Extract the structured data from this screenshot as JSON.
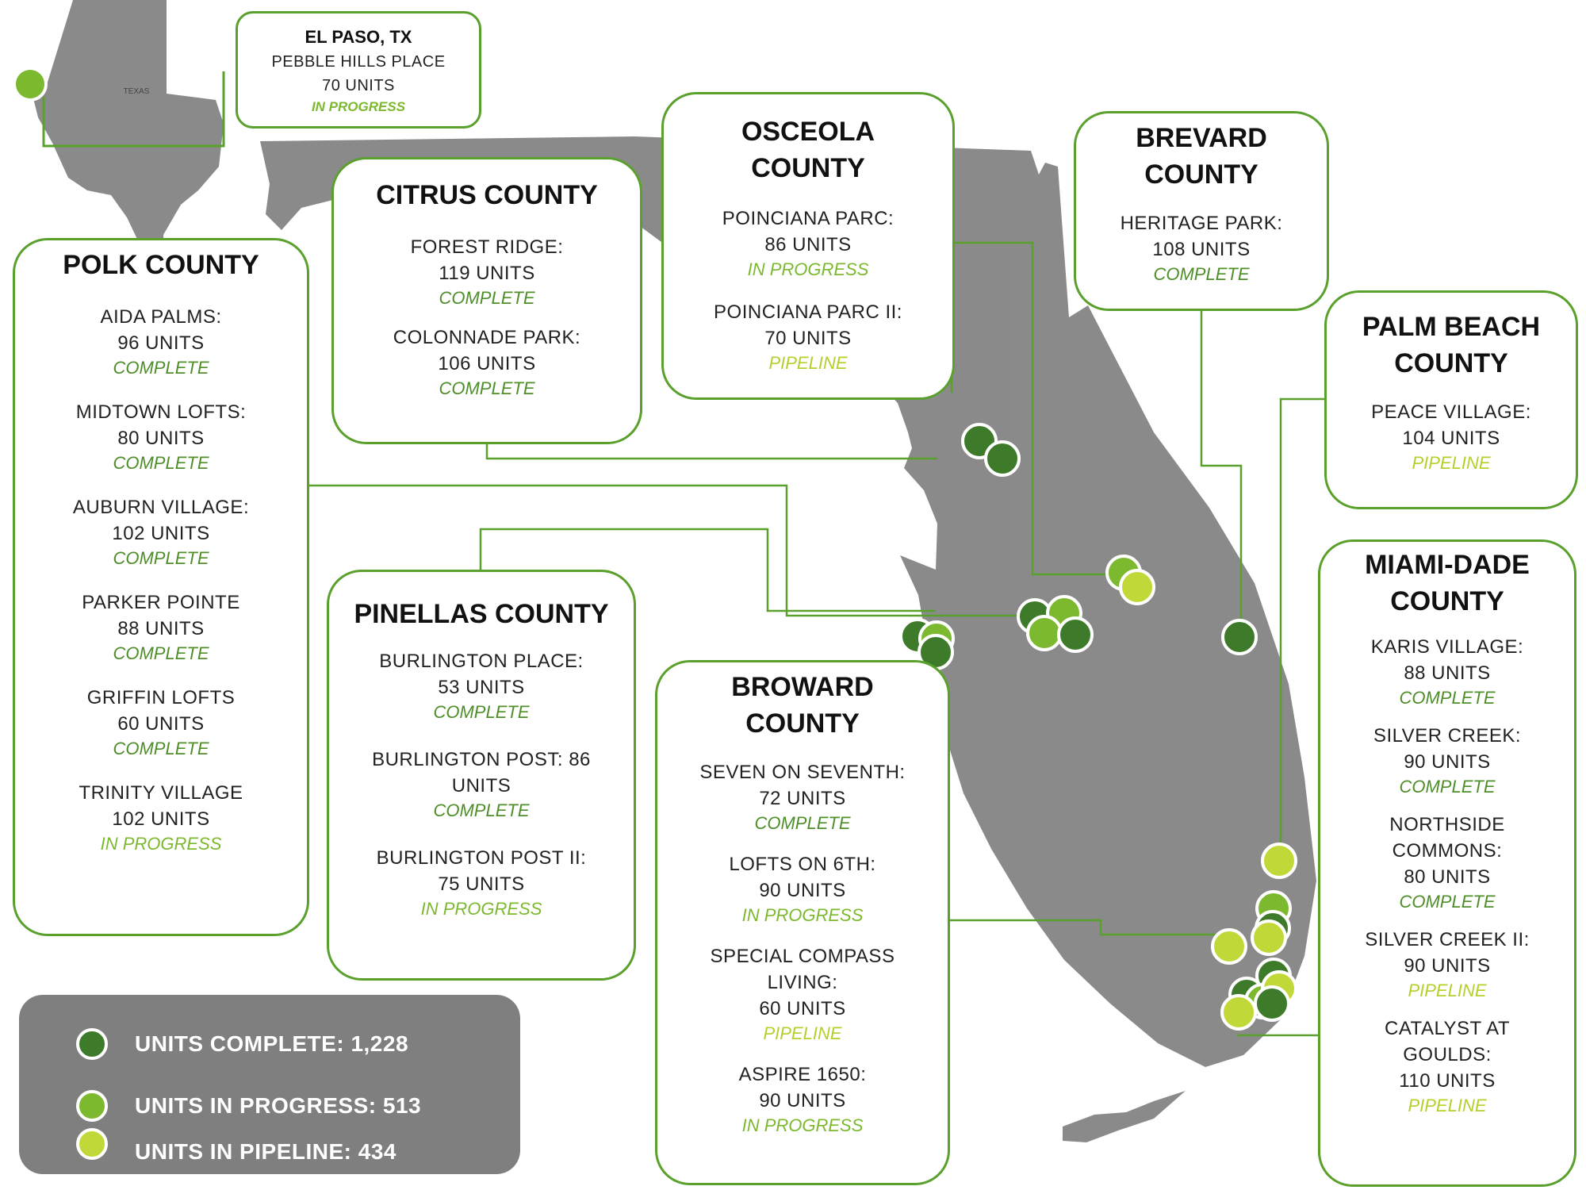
{
  "texas_inset": {
    "label": "TEXAS"
  },
  "colors": {
    "complete": "#3d7a2a",
    "in_progress": "#7cb92e",
    "pipeline": "#c2d838",
    "frame": "#5aa02c",
    "land": "#8a8a8a"
  },
  "el_paso": {
    "title": "EL PASO, TX",
    "name": "PEBBLE HILLS PLACE",
    "units": "70 UNITS",
    "status": "IN PROGRESS"
  },
  "polk": {
    "title": "POLK COUNTY",
    "projects": [
      {
        "name": "AIDA PALMS:",
        "units": "96 UNITS",
        "status": "COMPLETE"
      },
      {
        "name": "MIDTOWN LOFTS:",
        "units": "80 UNITS",
        "status": "COMPLETE"
      },
      {
        "name": "AUBURN VILLAGE:",
        "units": "102 UNITS",
        "status": "COMPLETE"
      },
      {
        "name": "PARKER POINTE",
        "units": "88 UNITS",
        "status": "COMPLETE"
      },
      {
        "name": "GRIFFIN LOFTS",
        "units": "60 UNITS",
        "status": "COMPLETE"
      },
      {
        "name": "TRINITY VILLAGE",
        "units": "102 UNITS",
        "status": "IN PROGRESS"
      }
    ]
  },
  "citrus": {
    "title": "CITRUS COUNTY",
    "projects": [
      {
        "name": "FOREST RIDGE:",
        "units": "119 UNITS",
        "status": "COMPLETE"
      },
      {
        "name": "COLONNADE PARK:",
        "units": "106 UNITS",
        "status": "COMPLETE"
      }
    ]
  },
  "osceola": {
    "title_line1": "OSCEOLA",
    "title_line2": "COUNTY",
    "projects": [
      {
        "name": "POINCIANA PARC:",
        "units": "86 UNITS",
        "status": "IN PROGRESS"
      },
      {
        "name": "POINCIANA PARC II:",
        "units": "70 UNITS",
        "status": "PIPELINE"
      }
    ]
  },
  "brevard": {
    "title_line1": "BREVARD",
    "title_line2": "COUNTY",
    "projects": [
      {
        "name": "HERITAGE PARK:",
        "units": "108 UNITS",
        "status": "COMPLETE"
      }
    ]
  },
  "palm_beach": {
    "title_line1": "PALM BEACH",
    "title_line2": "COUNTY",
    "projects": [
      {
        "name": "PEACE VILLAGE:",
        "units": "104 UNITS",
        "status": "PIPELINE"
      }
    ]
  },
  "pinellas": {
    "title": "PINELLAS COUNTY",
    "projects": [
      {
        "name": "BURLINGTON PLACE:",
        "units": "53 UNITS",
        "status": "COMPLETE"
      },
      {
        "name": "BURLINGTON POST: 86",
        "units": "UNITS",
        "status": "COMPLETE"
      },
      {
        "name": "BURLINGTON POST II:",
        "units": "75 UNITS",
        "status": "IN PROGRESS"
      }
    ]
  },
  "broward": {
    "title_line1": "BROWARD",
    "title_line2": "COUNTY",
    "projects": [
      {
        "name": "SEVEN ON SEVENTH:",
        "units": "72 UNITS",
        "status": "COMPLETE"
      },
      {
        "name": "LOFTS ON 6TH:",
        "units": "90 UNITS",
        "status": "IN PROGRESS"
      },
      {
        "name_line1": "SPECIAL COMPASS",
        "name_line2": "LIVING:",
        "units": "60 UNITS",
        "status": "PIPELINE"
      },
      {
        "name": "ASPIRE 1650:",
        "units": "90 UNITS",
        "status": "IN PROGRESS"
      }
    ]
  },
  "miami_dade": {
    "title_line1": "MIAMI-DADE",
    "title_line2": "COUNTY",
    "projects": [
      {
        "name": "KARIS VILLAGE:",
        "units": "88 UNITS",
        "status": "COMPLETE"
      },
      {
        "name": "SILVER CREEK:",
        "units": "90 UNITS",
        "status": "COMPLETE"
      },
      {
        "name_line1": "NORTHSIDE",
        "name_line2": "COMMONS:",
        "units": "80 UNITS",
        "status": "COMPLETE"
      },
      {
        "name": "SILVER CREEK II:",
        "units": "90 UNITS",
        "status": "PIPELINE"
      },
      {
        "name_line1": "CATALYST AT",
        "name_line2": "GOULDS:",
        "units": "110 UNITS",
        "status": "PIPELINE"
      }
    ]
  },
  "legend": {
    "complete": "UNITS COMPLETE: 1,228",
    "in_progress": "UNITS IN PROGRESS: 513",
    "pipeline": "UNITS IN PIPELINE: 434"
  }
}
